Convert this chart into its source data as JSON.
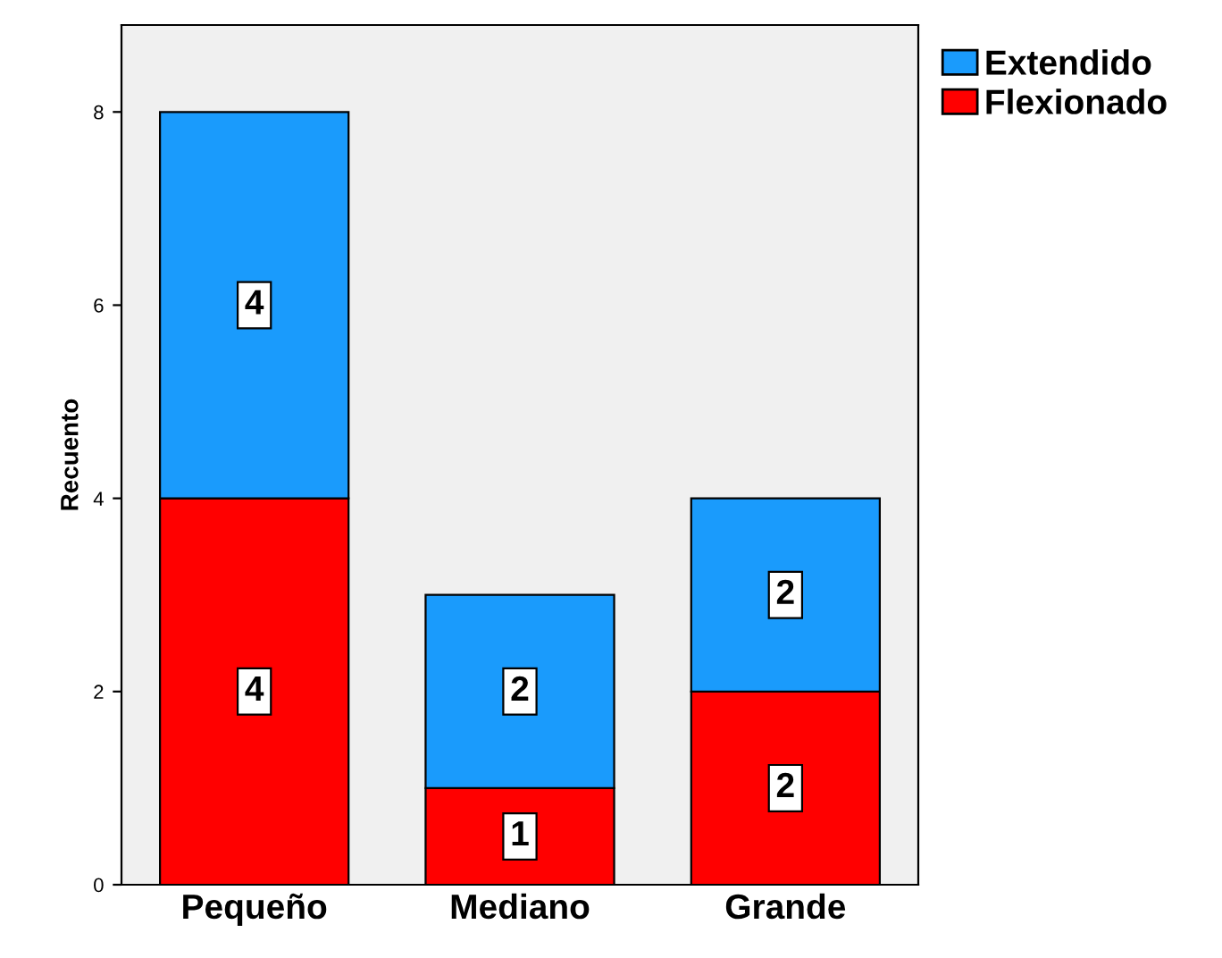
{
  "chart_data": {
    "type": "bar",
    "stacked": true,
    "ylabel": "Recuento",
    "categories": [
      "Pequeño",
      "Mediano",
      "Grande"
    ],
    "series": [
      {
        "name": "Flexionado",
        "color": "#ff0000",
        "values": [
          4,
          1,
          2
        ]
      },
      {
        "name": "Extendido",
        "color": "#1a9bfc",
        "values": [
          4,
          2,
          2
        ]
      }
    ],
    "ylim": [
      0,
      8.9
    ],
    "yticks": [
      0,
      2,
      4,
      6,
      8
    ],
    "data_labels": true,
    "legend": "top right",
    "grid": false
  }
}
